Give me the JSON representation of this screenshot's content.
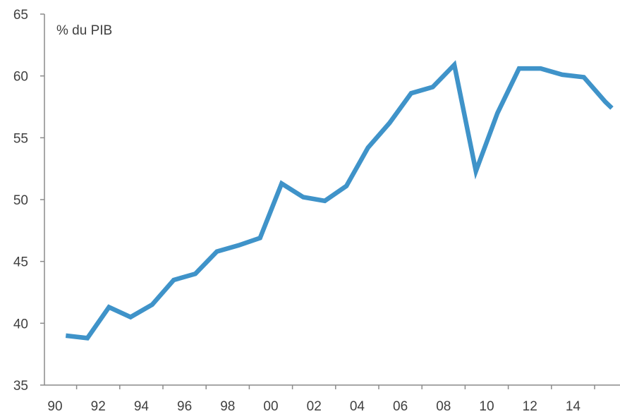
{
  "chart_data": {
    "type": "line",
    "unit_label": "% du PIB",
    "ylim": [
      35,
      65
    ],
    "yticks": [
      35,
      40,
      45,
      50,
      55,
      60,
      65
    ],
    "xlim": [
      1990,
      2015.8
    ],
    "xticks": [
      {
        "value": 1990,
        "label": "90"
      },
      {
        "value": 1992,
        "label": "92"
      },
      {
        "value": 1994,
        "label": "94"
      },
      {
        "value": 1996,
        "label": "96"
      },
      {
        "value": 1998,
        "label": "98"
      },
      {
        "value": 2000,
        "label": "00"
      },
      {
        "value": 2002,
        "label": "02"
      },
      {
        "value": 2004,
        "label": "04"
      },
      {
        "value": 2006,
        "label": "06"
      },
      {
        "value": 2008,
        "label": "08"
      },
      {
        "value": 2010,
        "label": "10"
      },
      {
        "value": 2012,
        "label": "12"
      },
      {
        "value": 2014,
        "label": "14"
      }
    ],
    "grid": false,
    "series": [
      {
        "color": "#3f93c9",
        "points": [
          {
            "x": 1990.5,
            "y": 39.0
          },
          {
            "x": 1991.5,
            "y": 38.8
          },
          {
            "x": 1992.5,
            "y": 41.3
          },
          {
            "x": 1993.5,
            "y": 40.5
          },
          {
            "x": 1994.5,
            "y": 41.5
          },
          {
            "x": 1995.5,
            "y": 43.5
          },
          {
            "x": 1996.5,
            "y": 44.0
          },
          {
            "x": 1997.5,
            "y": 45.8
          },
          {
            "x": 1998.5,
            "y": 46.3
          },
          {
            "x": 1999.5,
            "y": 46.9
          },
          {
            "x": 2000.5,
            "y": 51.3
          },
          {
            "x": 2001.5,
            "y": 50.2
          },
          {
            "x": 2002.5,
            "y": 49.9
          },
          {
            "x": 2003.5,
            "y": 51.1
          },
          {
            "x": 2004.5,
            "y": 54.2
          },
          {
            "x": 2005.5,
            "y": 56.2
          },
          {
            "x": 2006.5,
            "y": 58.6
          },
          {
            "x": 2007.5,
            "y": 59.1
          },
          {
            "x": 2008.5,
            "y": 60.9
          },
          {
            "x": 2009.5,
            "y": 52.3
          },
          {
            "x": 2010.5,
            "y": 57.0
          },
          {
            "x": 2011.5,
            "y": 60.6
          },
          {
            "x": 2012.5,
            "y": 60.6
          },
          {
            "x": 2013.5,
            "y": 60.1
          },
          {
            "x": 2014.5,
            "y": 59.9
          },
          {
            "x": 2015.5,
            "y": 57.9
          },
          {
            "x": 2015.8,
            "y": 57.4
          }
        ]
      }
    ]
  }
}
